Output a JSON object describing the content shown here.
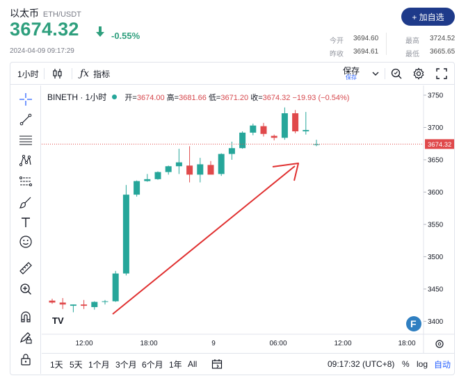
{
  "header": {
    "name": "以太币",
    "pair": "ETH/USDT",
    "price": "3674.32",
    "change": "-0.55%",
    "datetime": "2024-04-09 09:17:29",
    "add_button": "+ 加自选",
    "stats": {
      "open_label": "今开",
      "open_value": "3694.60",
      "high_label": "最高",
      "high_value": "3724.52",
      "prev_close_label": "昨收",
      "prev_close_value": "3694.61",
      "low_label": "最低",
      "low_value": "3665.65"
    }
  },
  "toolbar": {
    "interval": "1小时",
    "indicators": "指标",
    "save": "保存",
    "save_sub": "保存"
  },
  "legend": {
    "symbol": "BINETH · 1小时",
    "open_label": "开=",
    "open": "3674.00",
    "high_label": "高=",
    "high": "3681.66",
    "low_label": "低=",
    "low": "3671.20",
    "close_label": "收=",
    "close": "3674.32",
    "change": "−19.93 (−0.54%)"
  },
  "bottom": {
    "ranges": [
      "1天",
      "5天",
      "1个月",
      "3个月",
      "6个月",
      "1年",
      "All"
    ],
    "clock": "09:17:32 (UTC+8)",
    "percent": "%",
    "log": "log",
    "auto": "自动"
  },
  "colors": {
    "up": "#26a69a",
    "down": "#e0494b",
    "price_green": "#2e9f7d",
    "accent": "#1e3a8a",
    "arrow": "#e02f2f"
  },
  "chart_data": {
    "type": "candlestick",
    "ylim": [
      3380,
      3765
    ],
    "yticks": [
      3400,
      3450,
      3500,
      3550,
      3600,
      3650,
      3700,
      3750
    ],
    "xticks": [
      "12:00",
      "18:00",
      "9",
      "06:00",
      "12:00",
      "18:00"
    ],
    "last_price_label": "3674.32",
    "last_price": 3674.32,
    "candles": [
      {
        "o": 3432,
        "h": 3435,
        "l": 3427,
        "c": 3429
      },
      {
        "o": 3429,
        "h": 3436,
        "l": 3419,
        "c": 3426
      },
      {
        "o": 3424,
        "h": 3426,
        "l": 3414,
        "c": 3426
      },
      {
        "o": 3426,
        "h": 3433,
        "l": 3419,
        "c": 3424
      },
      {
        "o": 3422,
        "h": 3431,
        "l": 3418,
        "c": 3430
      },
      {
        "o": 3430,
        "h": 3433,
        "l": 3426,
        "c": 3431
      },
      {
        "o": 3431,
        "h": 3478,
        "l": 3430,
        "c": 3474
      },
      {
        "o": 3474,
        "h": 3611,
        "l": 3471,
        "c": 3596
      },
      {
        "o": 3596,
        "h": 3618,
        "l": 3593,
        "c": 3617
      },
      {
        "o": 3617,
        "h": 3628,
        "l": 3616,
        "c": 3620
      },
      {
        "o": 3620,
        "h": 3632,
        "l": 3619,
        "c": 3631
      },
      {
        "o": 3631,
        "h": 3641,
        "l": 3627,
        "c": 3640
      },
      {
        "o": 3640,
        "h": 3667,
        "l": 3628,
        "c": 3646
      },
      {
        "o": 3641,
        "h": 3671,
        "l": 3615,
        "c": 3627
      },
      {
        "o": 3627,
        "h": 3653,
        "l": 3615,
        "c": 3643
      },
      {
        "o": 3642,
        "h": 3648,
        "l": 3628,
        "c": 3627
      },
      {
        "o": 3628,
        "h": 3660,
        "l": 3625,
        "c": 3659
      },
      {
        "o": 3659,
        "h": 3678,
        "l": 3650,
        "c": 3668
      },
      {
        "o": 3668,
        "h": 3694,
        "l": 3667,
        "c": 3692
      },
      {
        "o": 3692,
        "h": 3706,
        "l": 3688,
        "c": 3703
      },
      {
        "o": 3702,
        "h": 3707,
        "l": 3686,
        "c": 3690
      },
      {
        "o": 3687,
        "h": 3689,
        "l": 3680,
        "c": 3684
      },
      {
        "o": 3684,
        "h": 3731,
        "l": 3681,
        "c": 3722
      },
      {
        "o": 3722,
        "h": 3727,
        "l": 3691,
        "c": 3694
      },
      {
        "o": 3694,
        "h": 3724,
        "l": 3689,
        "c": 3696
      },
      {
        "o": 3674,
        "h": 3681,
        "l": 3671,
        "c": 3674
      }
    ],
    "annotation": "upward-trend-arrow"
  }
}
